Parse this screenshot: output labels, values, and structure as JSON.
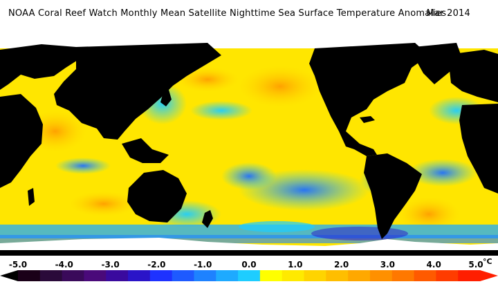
{
  "title": {
    "text": "NOAA Coral Reef Watch Monthly Mean Satellite Nighttime Sea Surface Temperature Anomalies",
    "date": "Mar 2014"
  },
  "map": {
    "land_color": "#000000",
    "ice_color": "#ffffff"
  },
  "legend": {
    "ticks": [
      "-5.0",
      "-4.0",
      "-3.0",
      "-2.0",
      "-1.0",
      "0.0",
      "1.0",
      "2.0",
      "3.0",
      "4.0",
      "5.0"
    ],
    "unit": "°C",
    "colors": [
      "#1a0018",
      "#2a0a3a",
      "#3a0a5a",
      "#4a0a7a",
      "#3a0a9e",
      "#2a14c8",
      "#1e32ff",
      "#1e5aff",
      "#1e82ff",
      "#1eaaff",
      "#1ecdff",
      "#ffff00",
      "#ffea00",
      "#ffd400",
      "#ffbe00",
      "#ffa800",
      "#ff9000",
      "#ff7800",
      "#ff5a00",
      "#ff3c00",
      "#ff1e00"
    ]
  }
}
